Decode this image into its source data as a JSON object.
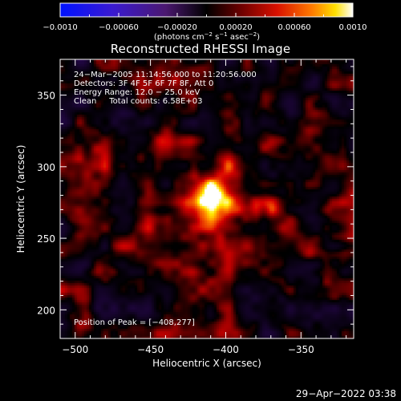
{
  "chart_data": {
    "type": "heatmap",
    "title": "Reconstructed RHESSI Image",
    "xlabel": "Heliocentric X (arcsec)",
    "ylabel": "Heliocentric Y (arcsec)",
    "xlim": [
      -510,
      -315
    ],
    "ylim": [
      180,
      375
    ],
    "xticks": [
      -500,
      -450,
      -400,
      -350
    ],
    "xtick_labels": [
      "−500",
      "−450",
      "−400",
      "−350"
    ],
    "yticks": [
      200,
      250,
      300,
      350
    ],
    "ytick_labels": [
      "200",
      "250",
      "300",
      "350"
    ],
    "colorbar": {
      "range": [
        -0.001,
        0.001
      ],
      "ticks": [
        -0.001,
        -0.0006,
        -0.0002,
        0.0002,
        0.0006,
        0.001
      ],
      "tick_labels": [
        "−0.0010",
        "−0.00060",
        "−0.00020",
        "0.00020",
        "0.00060",
        "0.0010"
      ],
      "units_prefix": "(photons cm",
      "units_exp1": "−2",
      "units_mid": " s",
      "units_exp2": "−1",
      "units_mid2": " asec",
      "units_exp3": "−2",
      "units_suffix": ")"
    },
    "peak": {
      "x": -408,
      "y": 277
    },
    "colormap": "blue-purple-black-red-yellow-white"
  },
  "info": {
    "line1": "24−Mar−2005 11:14:56.000 to 11:20:56.000",
    "line2": "Detectors: 3F 4F 5F 6F 7F 8F, Att 0",
    "line3": "Energy Range: 12.0 − 25.0 keV",
    "line4": "Clean     Total counts: 6.58E+03",
    "peak_label": "Position of Peak = [−408,277]"
  },
  "footer": {
    "timestamp": "29−Apr−2022 03:38"
  }
}
